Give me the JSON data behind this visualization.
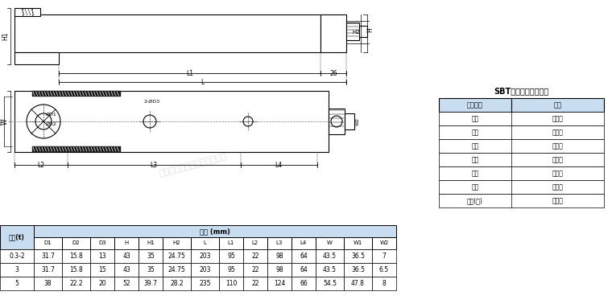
{
  "cable_table_title": "SBT传感器电缆线色标",
  "cable_headers": [
    "电缆颜色",
    "定义"
  ],
  "cable_rows": [
    [
      "绿色",
      "正激励"
    ],
    [
      "黑色",
      "负激励"
    ],
    [
      "黄色",
      "正反馈"
    ],
    [
      "蓝色",
      "负反馈"
    ],
    [
      "白色",
      "正信号"
    ],
    [
      "红色",
      "负信号"
    ],
    [
      "黄色(长)",
      "屏蔽线"
    ]
  ],
  "dim_table_headers": [
    "容量(t)",
    "D1",
    "D2",
    "D3",
    "H",
    "H1",
    "H2",
    "L",
    "L1",
    "L2",
    "L3",
    "L4",
    "W",
    "W1",
    "W2"
  ],
  "dim_table_rows": [
    [
      "0.3-2",
      "31.7",
      "15.8",
      "13",
      "43",
      "35",
      "24.75",
      "203",
      "95",
      "22",
      "98",
      "64",
      "43.5",
      "36.5",
      "7"
    ],
    [
      "3",
      "31.7",
      "15.8",
      "15",
      "43",
      "35",
      "24.75",
      "203",
      "95",
      "22",
      "98",
      "64",
      "43.5",
      "36.5",
      "6.5"
    ],
    [
      "5",
      "38",
      "22.2",
      "20",
      "52",
      "39.7",
      "28.2",
      "235",
      "110",
      "22",
      "124",
      "66",
      "54.5",
      "47.8",
      "8"
    ]
  ],
  "bg_color": "#ffffff",
  "line_color": "#000000",
  "table_header_bg": "#c8ddf0",
  "dim_header_bg": "#c8ddf0",
  "watermark_text": "广州双鑫自动化科技有限公司"
}
